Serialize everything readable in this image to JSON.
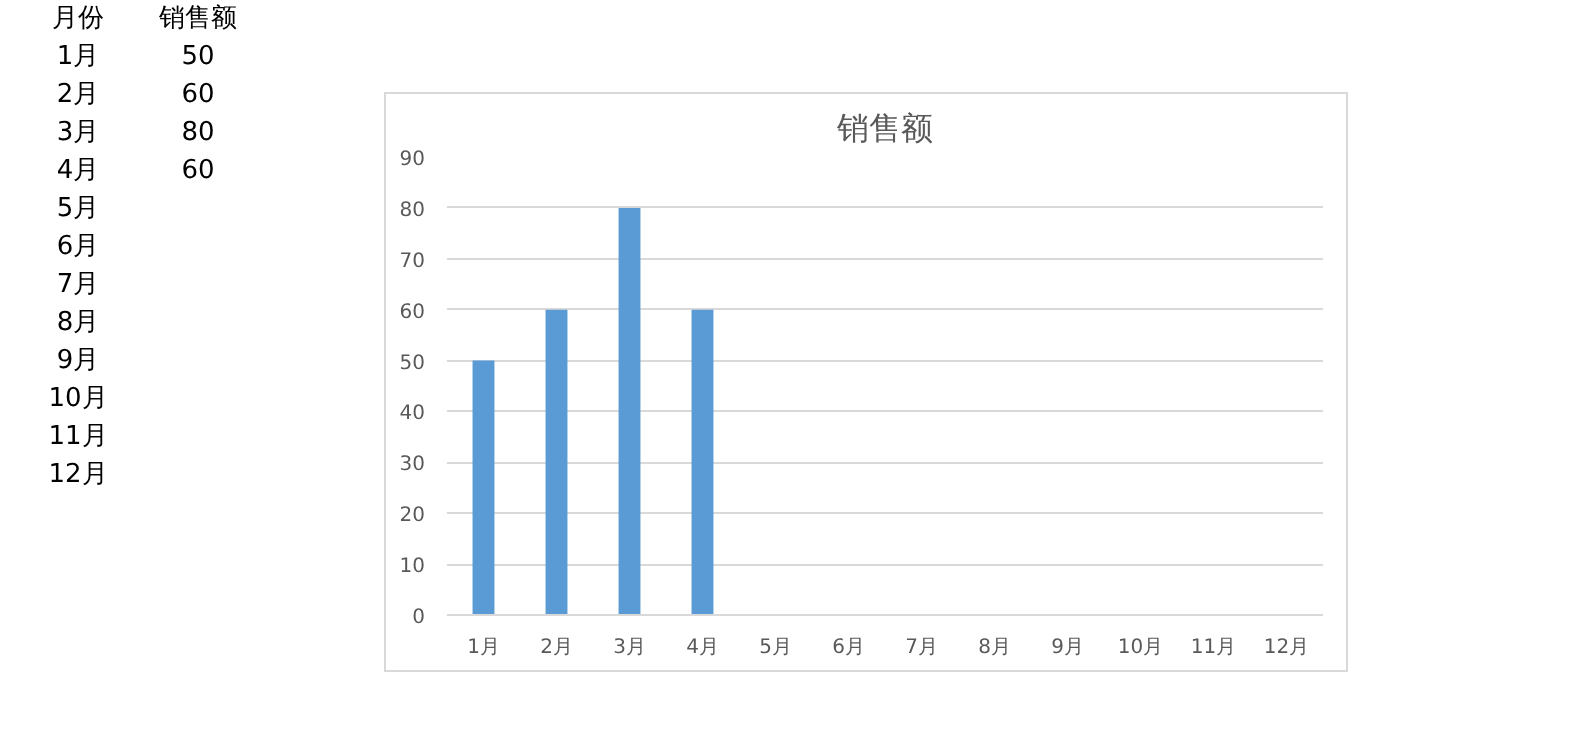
{
  "chart_data": {
    "type": "bar",
    "title": "销售额",
    "annotations": [
      "月份",
      "销售额",
      "1月",
      "2月",
      "3月",
      "4月",
      "5月",
      "6月",
      "7月",
      "8月",
      "9月",
      "10月",
      "11月",
      "12月",
      "50",
      "60",
      "80",
      "60"
    ],
    "categories": [
      "1月",
      "2月",
      "3月",
      "4月",
      "5月",
      "6月",
      "7月",
      "8月",
      "9月",
      "10月",
      "11月",
      "12月"
    ],
    "values": [
      50,
      60,
      80,
      60,
      null,
      null,
      null,
      null,
      null,
      null,
      null,
      null
    ],
    "color": "#5b9bd5",
    "ylim": [
      0,
      90
    ],
    "yticks": [
      0,
      10,
      20,
      30,
      40,
      50,
      60,
      70,
      80,
      90
    ],
    "grid": "y"
  }
}
